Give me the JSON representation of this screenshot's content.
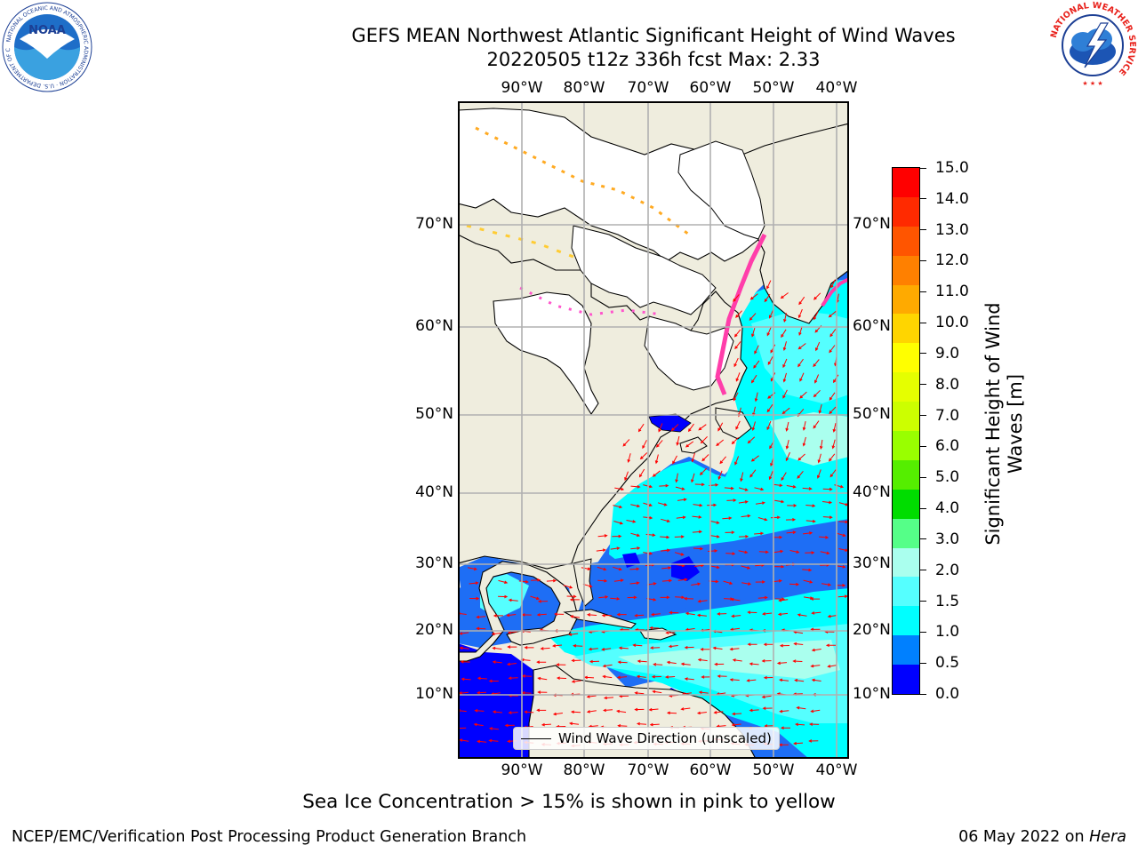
{
  "header": {
    "title_line1": "GEFS MEAN Northwest Atlantic Significant Height of Wind Waves",
    "title_line2": "20220505 t12z 336h fcst   Max: 2.33"
  },
  "logos": {
    "noaa": {
      "wordmark": "NOAA",
      "ring_text": "NATIONAL OCEANIC AND ATMOSPHERIC ADMINISTRATION · U.S. DEPARTMENT OF COMMERCE"
    },
    "nws": {
      "ring_text": "NATIONAL WEATHER SERVICE"
    }
  },
  "map": {
    "lon_labels": [
      "90°W",
      "80°W",
      "70°W",
      "60°W",
      "50°W",
      "40°W"
    ],
    "lat_labels": [
      "70°N",
      "60°N",
      "50°N",
      "40°N",
      "30°N",
      "20°N",
      "10°N"
    ],
    "legend_label": "Wind Wave Direction (unscaled)",
    "colors": {
      "land": "#efedde",
      "ice_free_unknown": "#ffffff",
      "arrows": "#ff0000",
      "coast": "#000000",
      "grid": "#b0b0b0"
    }
  },
  "colorbar": {
    "title": "Significant Height of Wind Waves [m]",
    "tick_labels": [
      "15.0",
      "14.0",
      "13.0",
      "12.0",
      "11.0",
      "10.0",
      "9.0",
      "8.0",
      "7.0",
      "6.0",
      "5.0",
      "4.0",
      "3.0",
      "2.0",
      "1.5",
      "1.0",
      "0.5",
      "0.0"
    ],
    "colors_top_to_bottom": [
      "#ff0000",
      "#ff2a00",
      "#ff5500",
      "#ff8000",
      "#ffaa00",
      "#ffd500",
      "#ffff00",
      "#e5ff00",
      "#ccff00",
      "#99ff00",
      "#55ee00",
      "#00dd00",
      "#55ff88",
      "#aaffee",
      "#55ffff",
      "#00ffff",
      "#0080ff",
      "#0000ff"
    ]
  },
  "note": "Sea Ice Concentration > 15% is shown in pink to yellow",
  "footer": {
    "left": "NCEP/EMC/Verification Post Processing Product Generation Branch",
    "right_date": "06 May 2022 on ",
    "right_host": "Hera"
  }
}
